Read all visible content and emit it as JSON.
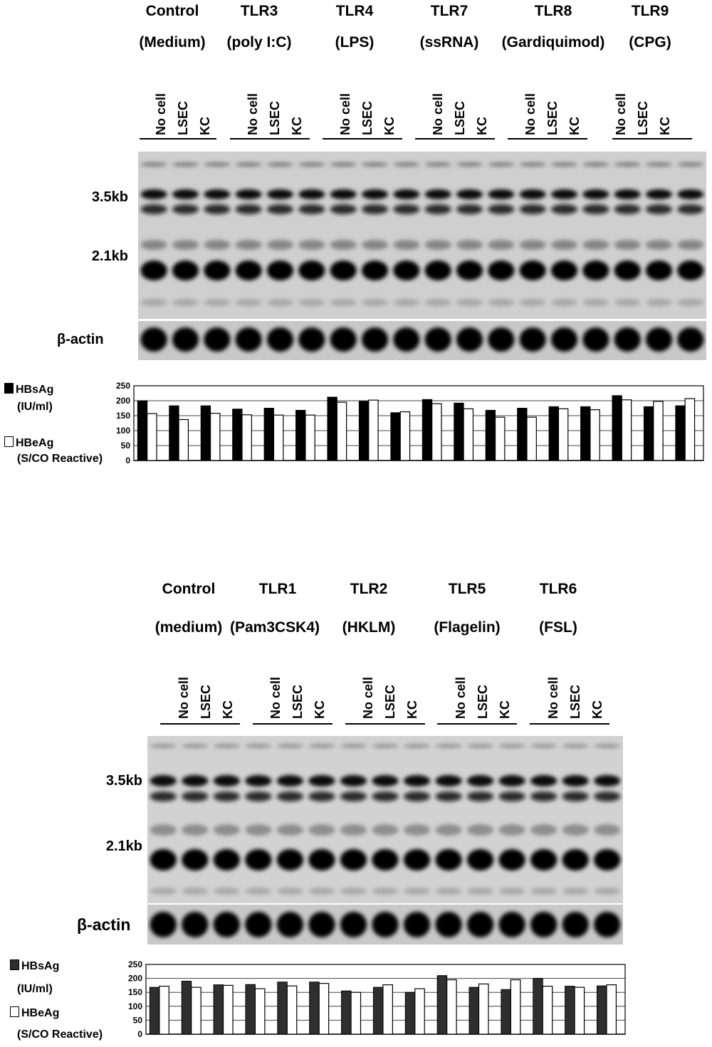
{
  "figure": {
    "top": {
      "groups": [
        {
          "name": "Control",
          "sub": "(Medium)"
        },
        {
          "name": "TLR3",
          "sub": "(poly I:C)"
        },
        {
          "name": "TLR4",
          "sub": "(LPS)"
        },
        {
          "name": "TLR7",
          "sub": "(ssRNA)"
        },
        {
          "name": "TLR8",
          "sub": "(Gardiquimod)"
        },
        {
          "name": "TLR9",
          "sub": "(CPG)"
        }
      ],
      "lanes": [
        "No cell",
        "LSEC",
        "KC"
      ],
      "markers": {
        "upper": "3.5kb",
        "lower": "2.1kb"
      },
      "actin_label": "β-actin",
      "legend": {
        "filled_line1": "HBsAg",
        "filled_line2": "(IU/ml)",
        "open_line1": "HBeAg",
        "open_line2": "(S/CO Reactive)"
      }
    },
    "bottom": {
      "groups": [
        {
          "name": "Control",
          "sub": "(medium)"
        },
        {
          "name": "TLR1",
          "sub": "(Pam3CSK4)"
        },
        {
          "name": "TLR2",
          "sub": "(HKLM)"
        },
        {
          "name": "TLR5",
          "sub": "(Flagelin)"
        },
        {
          "name": "TLR6",
          "sub": "(FSL)"
        }
      ],
      "lanes": [
        "No cell",
        "LSEC",
        "KC"
      ],
      "markers": {
        "upper": "3.5kb",
        "lower": "2.1kb"
      },
      "actin_label": "β-actin",
      "legend": {
        "filled_line1": "HBsAg",
        "filled_line2": "(IU/ml)",
        "open_line1": "HBeAg",
        "open_line2": "(S/CO Reactive)"
      }
    }
  },
  "chart_data": [
    {
      "type": "bar",
      "categories": [
        "1",
        "2",
        "3",
        "4",
        "5",
        "6",
        "7",
        "8",
        "9",
        "10",
        "11",
        "12",
        "13",
        "14",
        "15",
        "16",
        "17",
        "18"
      ],
      "series": [
        {
          "name": "HBsAg (IU/ml)",
          "values": [
            200,
            183,
            183,
            172,
            175,
            168,
            212,
            198,
            160,
            204,
            192,
            168,
            175,
            180,
            180,
            217,
            180,
            183
          ]
        },
        {
          "name": "HBeAg (S/CO Reactive)",
          "values": [
            157,
            137,
            158,
            153,
            152,
            152,
            195,
            202,
            163,
            190,
            173,
            145,
            145,
            173,
            170,
            203,
            198,
            207
          ]
        }
      ],
      "ylim": [
        0,
        250
      ],
      "yticks": [
        "0",
        "50",
        "100",
        "150",
        "200",
        "250"
      ],
      "colors": {
        "HBsAg": "#000000",
        "HBeAg": "#ffffff"
      }
    },
    {
      "type": "bar",
      "categories": [
        "1",
        "2",
        "3",
        "4",
        "5",
        "6",
        "7",
        "8",
        "9",
        "10",
        "11",
        "12",
        "13",
        "14",
        "15"
      ],
      "series": [
        {
          "name": "HBsAg (IU/ml)",
          "values": [
            168,
            190,
            177,
            178,
            187,
            187,
            155,
            168,
            150,
            210,
            168,
            160,
            200,
            172,
            173
          ]
        },
        {
          "name": "HBeAg (S/CO Reactive)",
          "values": [
            172,
            168,
            175,
            163,
            173,
            182,
            150,
            177,
            163,
            195,
            180,
            195,
            172,
            168,
            177
          ]
        }
      ],
      "ylim": [
        0,
        250
      ],
      "yticks": [
        "0",
        "50",
        "100",
        "150",
        "200",
        "250"
      ],
      "colors": {
        "HBsAg": "#2f2f2f",
        "HBeAg": "#ffffff"
      }
    }
  ]
}
